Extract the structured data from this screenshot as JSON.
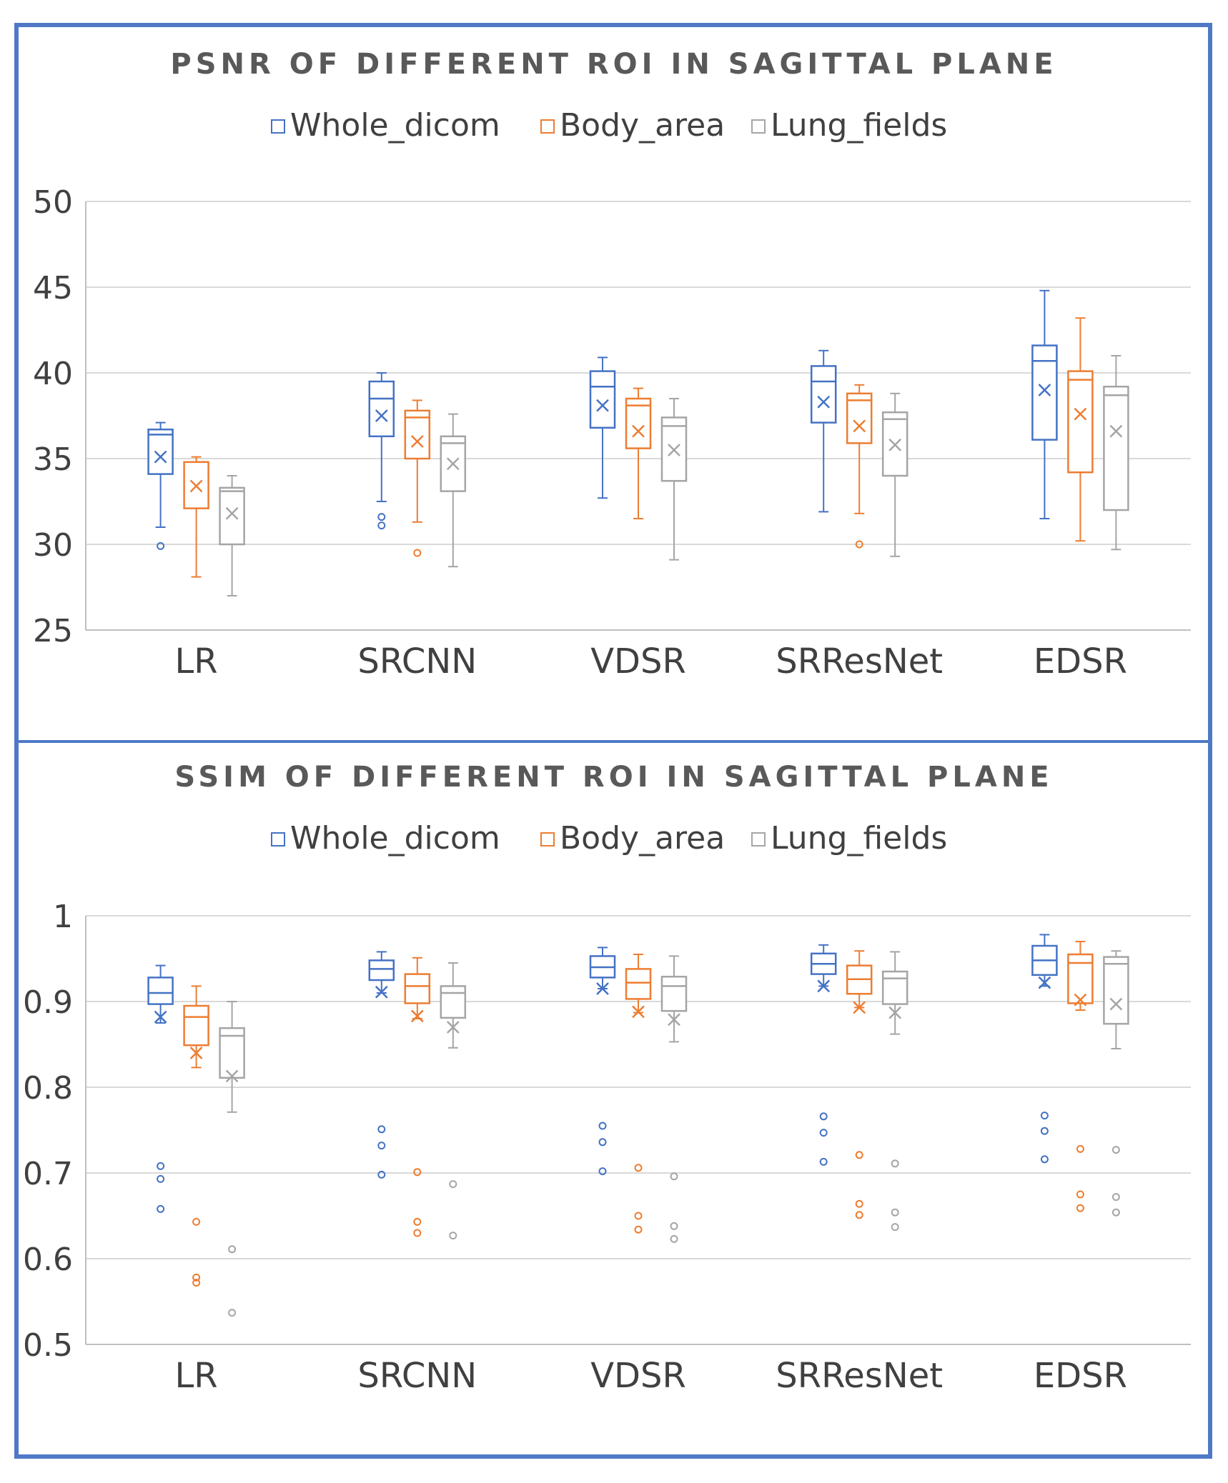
{
  "colors": {
    "Whole_dicom": "#4472c4",
    "Body_area": "#ed7d31",
    "Lung_fields": "#a5a5a5",
    "frame": "#4f79c7",
    "grid": "#d9d9d9",
    "axis": "#bfbfbf"
  },
  "chart_data": [
    {
      "type": "box",
      "title": "PSNR OF DIFFERENT ROI IN SAGITTAL PLANE",
      "legend": [
        "Whole_dicom",
        "Body_area",
        "Lung_fields"
      ],
      "legend_position": "top",
      "categories": [
        "LR",
        "SRCNN",
        "VDSR",
        "SRResNet",
        "EDSR"
      ],
      "ylim": [
        25,
        50
      ],
      "yticks": [
        50,
        45,
        40,
        35,
        30,
        25
      ],
      "ytick_labels": [
        "50",
        "45",
        "40",
        "35",
        "30",
        "25"
      ],
      "grid": true,
      "series": [
        {
          "name": "Whole_dicom",
          "boxes": [
            {
              "min": 31,
              "q1": 34.1,
              "median": 36.4,
              "q3": 36.7,
              "max": 37.1,
              "mean": 35.1,
              "outliers": [
                29.9
              ]
            },
            {
              "min": 32.5,
              "q1": 36.3,
              "median": 38.5,
              "q3": 39.5,
              "max": 40,
              "mean": 37.5,
              "outliers": [
                31.6,
                31.1
              ]
            },
            {
              "min": 32.7,
              "q1": 36.8,
              "median": 39.2,
              "q3": 40.1,
              "max": 40.9,
              "mean": 38.1,
              "outliers": []
            },
            {
              "min": 31.9,
              "q1": 37.1,
              "median": 39.5,
              "q3": 40.4,
              "max": 41.3,
              "mean": 38.3,
              "outliers": []
            },
            {
              "min": 31.5,
              "q1": 36.1,
              "median": 40.7,
              "q3": 41.6,
              "max": 44.8,
              "mean": 39,
              "outliers": []
            }
          ]
        },
        {
          "name": "Body_area",
          "boxes": [
            {
              "min": 28.1,
              "q1": 32.1,
              "median": 34.8,
              "q3": 34.8,
              "max": 35.1,
              "mean": 33.4,
              "outliers": []
            },
            {
              "min": 31.3,
              "q1": 35,
              "median": 37.4,
              "q3": 37.8,
              "max": 38.4,
              "mean": 36,
              "outliers": [
                29.5
              ]
            },
            {
              "min": 31.5,
              "q1": 35.6,
              "median": 38.1,
              "q3": 38.5,
              "max": 39.1,
              "mean": 36.6,
              "outliers": []
            },
            {
              "min": 31.8,
              "q1": 35.9,
              "median": 38.4,
              "q3": 38.8,
              "max": 39.3,
              "mean": 36.9,
              "outliers": [
                30
              ]
            },
            {
              "min": 30.2,
              "q1": 34.2,
              "median": 39.6,
              "q3": 40.1,
              "max": 43.2,
              "mean": 37.6,
              "outliers": []
            }
          ]
        },
        {
          "name": "Lung_fields",
          "boxes": [
            {
              "min": 27,
              "q1": 30,
              "median": 33.1,
              "q3": 33.3,
              "max": 34,
              "mean": 31.8,
              "outliers": []
            },
            {
              "min": 28.7,
              "q1": 33.1,
              "median": 35.9,
              "q3": 36.3,
              "max": 37.6,
              "mean": 34.7,
              "outliers": []
            },
            {
              "min": 29.1,
              "q1": 33.7,
              "median": 36.9,
              "q3": 37.4,
              "max": 38.5,
              "mean": 35.5,
              "outliers": []
            },
            {
              "min": 29.3,
              "q1": 34,
              "median": 37.3,
              "q3": 37.7,
              "max": 38.8,
              "mean": 35.8,
              "outliers": []
            },
            {
              "min": 29.7,
              "q1": 32,
              "median": 38.7,
              "q3": 39.2,
              "max": 41,
              "mean": 36.6,
              "outliers": []
            }
          ]
        }
      ]
    },
    {
      "type": "box",
      "title": "SSIM OF DIFFERENT ROI IN SAGITTAL PLANE",
      "legend": [
        "Whole_dicom",
        "Body_area",
        "Lung_fields"
      ],
      "legend_position": "top",
      "categories": [
        "LR",
        "SRCNN",
        "VDSR",
        "SRResNet",
        "EDSR"
      ],
      "ylim": [
        0.5,
        1
      ],
      "yticks": [
        1,
        0.9,
        0.8,
        0.7,
        0.6,
        0.5
      ],
      "ytick_labels": [
        "1",
        "0.9",
        "0.8",
        "0.7",
        "0.6",
        "0.5"
      ],
      "grid": true,
      "series": [
        {
          "name": "Whole_dicom",
          "boxes": [
            {
              "min": 0.875,
              "q1": 0.897,
              "median": 0.91,
              "q3": 0.928,
              "max": 0.942,
              "mean": 0.882,
              "outliers": [
                0.708,
                0.693,
                0.658
              ]
            },
            {
              "min": 0.91,
              "q1": 0.925,
              "median": 0.938,
              "q3": 0.948,
              "max": 0.958,
              "mean": 0.911,
              "outliers": [
                0.751,
                0.732,
                0.698
              ]
            },
            {
              "min": 0.915,
              "q1": 0.928,
              "median": 0.94,
              "q3": 0.953,
              "max": 0.963,
              "mean": 0.915,
              "outliers": [
                0.755,
                0.736,
                0.702
              ]
            },
            {
              "min": 0.918,
              "q1": 0.932,
              "median": 0.944,
              "q3": 0.956,
              "max": 0.966,
              "mean": 0.918,
              "outliers": [
                0.766,
                0.747,
                0.713
              ]
            },
            {
              "min": 0.918,
              "q1": 0.931,
              "median": 0.948,
              "q3": 0.965,
              "max": 0.978,
              "mean": 0.922,
              "outliers": [
                0.767,
                0.749,
                0.716
              ]
            }
          ]
        },
        {
          "name": "Body_area",
          "boxes": [
            {
              "min": 0.823,
              "q1": 0.849,
              "median": 0.882,
              "q3": 0.895,
              "max": 0.918,
              "mean": 0.84,
              "outliers": [
                0.643,
                0.578,
                0.572
              ]
            },
            {
              "min": 0.88,
              "q1": 0.898,
              "median": 0.918,
              "q3": 0.932,
              "max": 0.951,
              "mean": 0.883,
              "outliers": [
                0.701,
                0.643,
                0.63
              ]
            },
            {
              "min": 0.887,
              "q1": 0.903,
              "median": 0.922,
              "q3": 0.938,
              "max": 0.955,
              "mean": 0.888,
              "outliers": [
                0.706,
                0.65,
                0.634
              ]
            },
            {
              "min": 0.893,
              "q1": 0.909,
              "median": 0.926,
              "q3": 0.942,
              "max": 0.959,
              "mean": 0.893,
              "outliers": [
                0.721,
                0.664,
                0.651
              ]
            },
            {
              "min": 0.89,
              "q1": 0.898,
              "median": 0.945,
              "q3": 0.955,
              "max": 0.97,
              "mean": 0.902,
              "outliers": [
                0.728,
                0.675,
                0.659
              ]
            }
          ]
        },
        {
          "name": "Lung_fields",
          "boxes": [
            {
              "min": 0.771,
              "q1": 0.811,
              "median": 0.86,
              "q3": 0.869,
              "max": 0.9,
              "mean": 0.813,
              "outliers": [
                0.611,
                0.537
              ]
            },
            {
              "min": 0.846,
              "q1": 0.881,
              "median": 0.91,
              "q3": 0.918,
              "max": 0.945,
              "mean": 0.87,
              "outliers": [
                0.687,
                0.627
              ]
            },
            {
              "min": 0.853,
              "q1": 0.889,
              "median": 0.918,
              "q3": 0.929,
              "max": 0.953,
              "mean": 0.879,
              "outliers": [
                0.696,
                0.638,
                0.623
              ]
            },
            {
              "min": 0.862,
              "q1": 0.897,
              "median": 0.927,
              "q3": 0.935,
              "max": 0.958,
              "mean": 0.887,
              "outliers": [
                0.711,
                0.654,
                0.637
              ]
            },
            {
              "min": 0.845,
              "q1": 0.874,
              "median": 0.944,
              "q3": 0.952,
              "max": 0.959,
              "mean": 0.897,
              "outliers": [
                0.727,
                0.672,
                0.654
              ]
            }
          ]
        }
      ]
    }
  ]
}
